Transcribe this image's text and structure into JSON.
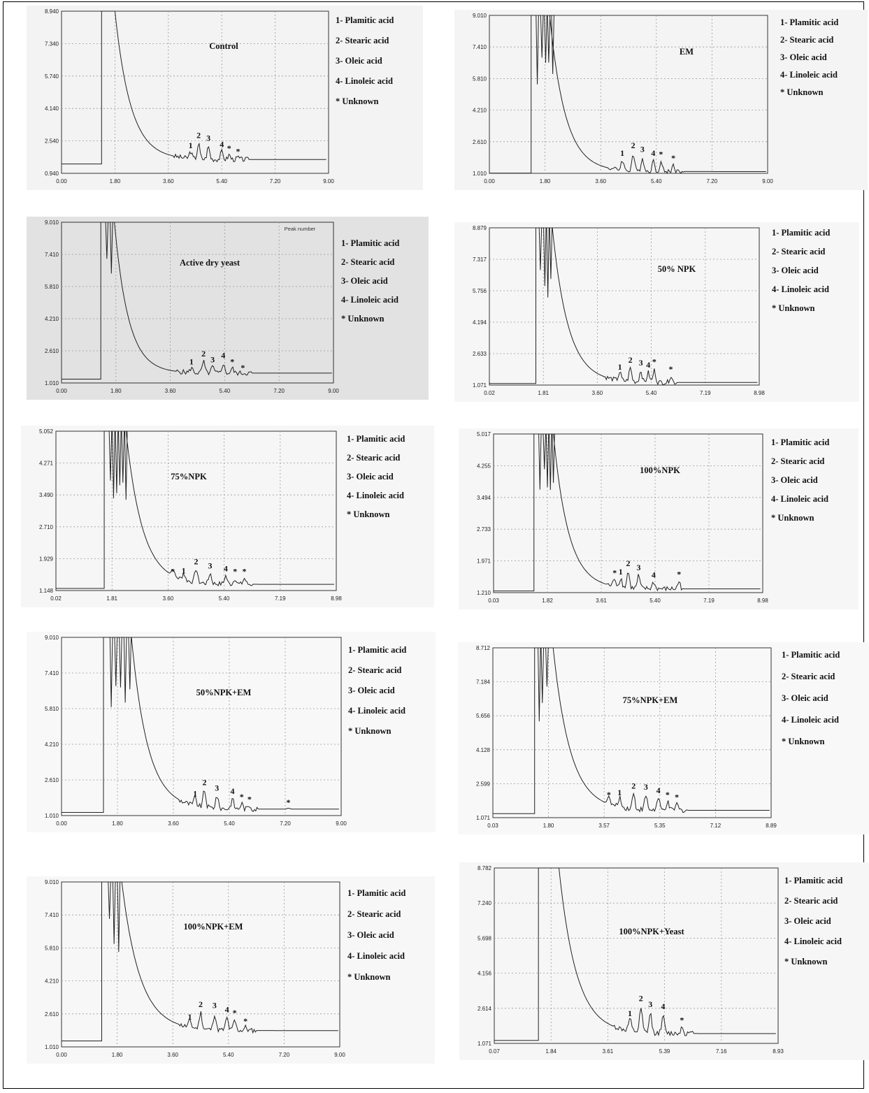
{
  "chart_data": [
    {
      "type": "line",
      "title": "Control",
      "x_ticks": [
        "0.00",
        "1.80",
        "3.60",
        "5.40",
        "7.20",
        "9.00"
      ],
      "y_ticks": [
        "0.940",
        "2.540",
        "4.140",
        "5.740",
        "7.340",
        "8.940"
      ],
      "xlim": [
        0,
        9
      ],
      "ylim": [
        0.94,
        8.94
      ],
      "grid": true,
      "trace": {
        "baseline": 1.4,
        "inj_start": 1.35,
        "inj_end": 1.8,
        "tail_end": 1.62,
        "decay_k": 1.05,
        "spikes": []
      },
      "peaks": [
        {
          "label": "1",
          "x": 4.35,
          "y": 2.05
        },
        {
          "label": "2",
          "x": 4.62,
          "y": 2.55
        },
        {
          "label": "3",
          "x": 4.95,
          "y": 2.4
        },
        {
          "label": "4",
          "x": 5.4,
          "y": 2.1
        },
        {
          "label": "*",
          "x": 5.65,
          "y": 1.9
        },
        {
          "label": "*",
          "x": 5.95,
          "y": 1.75
        }
      ],
      "legend": [
        "1- Plamitic acid",
        "2- Stearic acid",
        "3- Oleic acid",
        "4- Linoleic acid",
        "* Unknown"
      ]
    },
    {
      "type": "line",
      "title": "EM",
      "x_ticks": [
        "0.00",
        "1.80",
        "3.60",
        "5.40",
        "7.20",
        "9.00"
      ],
      "y_ticks": [
        "1.010",
        "2.610",
        "4.210",
        "5.810",
        "7.410",
        "9.010"
      ],
      "xlim": [
        0,
        9
      ],
      "ylim": [
        1.01,
        9.01
      ],
      "grid": true,
      "trace": {
        "baseline": 1.02,
        "inj_start": 1.35,
        "inj_end": 1.95,
        "tail_end": 1.1,
        "decay_k": 1.1,
        "spikes": [
          1.55,
          1.7,
          1.82,
          1.92,
          2.05
        ]
      },
      "peaks": [
        {
          "label": "1",
          "x": 4.3,
          "y": 1.75
        },
        {
          "label": "2",
          "x": 4.65,
          "y": 2.15
        },
        {
          "label": "3",
          "x": 4.95,
          "y": 1.95
        },
        {
          "label": "4",
          "x": 5.3,
          "y": 1.75
        },
        {
          "label": "*",
          "x": 5.55,
          "y": 1.7
        },
        {
          "label": "*",
          "x": 5.95,
          "y": 1.5
        }
      ],
      "legend": [
        "1- Plamitic acid",
        "2- Stearic acid",
        "3- Oleic acid",
        "4- Linoleic acid",
        "* Unknown"
      ]
    },
    {
      "type": "line",
      "title": "Active dry yeast",
      "x_ticks": [
        "0.00",
        "1.80",
        "3.60",
        "5.40",
        "7.20",
        "9.00"
      ],
      "y_ticks": [
        "1.010",
        "2.610",
        "4.210",
        "5.810",
        "7.410",
        "9.010"
      ],
      "xlim": [
        0,
        9
      ],
      "ylim": [
        1.01,
        9.01
      ],
      "grid": true,
      "header_label": "Peak number",
      "trace": {
        "baseline": 1.2,
        "inj_start": 1.3,
        "inj_end": 1.75,
        "tail_end": 1.5,
        "decay_k": 1.2,
        "spikes": [
          1.5,
          1.65
        ]
      },
      "peaks": [
        {
          "label": "1",
          "x": 4.3,
          "y": 1.8
        },
        {
          "label": "2",
          "x": 4.7,
          "y": 2.2
        },
        {
          "label": "3",
          "x": 5.0,
          "y": 1.9
        },
        {
          "label": "4",
          "x": 5.35,
          "y": 2.1
        },
        {
          "label": "*",
          "x": 5.65,
          "y": 1.8
        },
        {
          "label": "*",
          "x": 6.0,
          "y": 1.5
        }
      ],
      "legend": [
        "1- Plamitic acid",
        "2- Stearic acid",
        "3- Oleic acid",
        "4- Linoleic acid",
        "* Unknown"
      ]
    },
    {
      "type": "line",
      "title": "50% NPK",
      "x_ticks": [
        "0.02",
        "1.81",
        "3.60",
        "5.40",
        "7.19",
        "8.98"
      ],
      "y_ticks": [
        "1.071",
        "2.633",
        "4.194",
        "5.756",
        "7.317",
        "8.879"
      ],
      "xlim": [
        0,
        9
      ],
      "ylim": [
        1.071,
        8.879
      ],
      "grid": true,
      "trace": {
        "baseline": 1.15,
        "inj_start": 1.55,
        "inj_end": 2.1,
        "tail_end": 1.2,
        "decay_k": 1.05,
        "spikes": [
          1.7,
          1.85,
          1.95,
          2.05
        ]
      },
      "peaks": [
        {
          "label": "1",
          "x": 4.35,
          "y": 1.7
        },
        {
          "label": "2",
          "x": 4.7,
          "y": 2.05
        },
        {
          "label": "3",
          "x": 5.05,
          "y": 1.9
        },
        {
          "label": "4",
          "x": 5.3,
          "y": 1.8
        },
        {
          "label": "*",
          "x": 5.5,
          "y": 1.95
        },
        {
          "label": "*",
          "x": 6.05,
          "y": 1.6
        }
      ],
      "legend": [
        "1- Plamitic acid",
        "2- Stearic acid",
        "3- Oleic acid",
        "4- Linoleic acid",
        "* Unknown"
      ]
    },
    {
      "type": "line",
      "title": "75%NPK",
      "x_ticks": [
        "0.02",
        "1.81",
        "3.60",
        "5.40",
        "7.19",
        "8.98"
      ],
      "y_ticks": [
        "1.148",
        "1.929",
        "2.710",
        "3.490",
        "4.271",
        "5.052"
      ],
      "xlim": [
        0,
        9
      ],
      "ylim": [
        1.148,
        5.052
      ],
      "grid": true,
      "trace": {
        "baseline": 1.2,
        "inj_start": 1.55,
        "inj_end": 2.25,
        "tail_end": 1.3,
        "decay_k": 1.05,
        "spikes": [
          1.75,
          1.85,
          1.95,
          2.05,
          2.15,
          2.25
        ]
      },
      "peaks": [
        {
          "label": "*",
          "x": 3.75,
          "y": 1.48
        },
        {
          "label": "1",
          "x": 4.1,
          "y": 1.5
        },
        {
          "label": "2",
          "x": 4.5,
          "y": 1.72
        },
        {
          "label": "3",
          "x": 4.95,
          "y": 1.62
        },
        {
          "label": "4",
          "x": 5.45,
          "y": 1.55
        },
        {
          "label": "*",
          "x": 5.75,
          "y": 1.48
        },
        {
          "label": "*",
          "x": 6.05,
          "y": 1.48
        }
      ],
      "legend": [
        "1- Plamitic acid",
        "2- Stearic acid",
        "3- Oleic acid",
        "4- Linoleic acid",
        "* Unknown"
      ]
    },
    {
      "type": "line",
      "title": "100%NPK",
      "x_ticks": [
        "0.03",
        "1.82",
        "3.61",
        "5.40",
        "7.19",
        "8.98"
      ],
      "y_ticks": [
        "1.210",
        "1.971",
        "2.733",
        "3.494",
        "4.255",
        "5.017"
      ],
      "xlim": [
        0,
        9
      ],
      "ylim": [
        1.21,
        5.017
      ],
      "grid": true,
      "trace": {
        "baseline": 1.25,
        "inj_start": 1.35,
        "inj_end": 2.0,
        "tail_end": 1.3,
        "decay_k": 1.1,
        "spikes": [
          1.55,
          1.7,
          1.8,
          1.9,
          2.0
        ]
      },
      "peaks": [
        {
          "label": "*",
          "x": 4.05,
          "y": 1.55
        },
        {
          "label": "1",
          "x": 4.25,
          "y": 1.58
        },
        {
          "label": "2",
          "x": 4.5,
          "y": 1.78
        },
        {
          "label": "3",
          "x": 4.85,
          "y": 1.68
        },
        {
          "label": "4",
          "x": 5.35,
          "y": 1.5
        },
        {
          "label": "*",
          "x": 6.2,
          "y": 1.52
        }
      ],
      "legend": [
        "1- Plamitic acid",
        "2- Stearic acid",
        "3- Oleic acid",
        "4- Linoleic acid",
        "* Unknown"
      ]
    },
    {
      "type": "line",
      "title": "50%NPK+EM",
      "x_ticks": [
        "0.00",
        "1.80",
        "3.60",
        "5.40",
        "7.20",
        "9.00"
      ],
      "y_ticks": [
        "1.010",
        "2.610",
        "4.210",
        "5.810",
        "7.410",
        "9.010"
      ],
      "xlim": [
        0,
        9
      ],
      "ylim": [
        1.01,
        9.01
      ],
      "grid": true,
      "trace": {
        "baseline": 1.15,
        "inj_start": 1.35,
        "inj_end": 2.25,
        "tail_end": 1.3,
        "decay_k": 1.05,
        "spikes": [
          1.6,
          1.75,
          1.9,
          2.05,
          2.2
        ]
      },
      "peaks": [
        {
          "label": "1",
          "x": 4.3,
          "y": 1.75
        },
        {
          "label": "2",
          "x": 4.6,
          "y": 2.25
        },
        {
          "label": "3",
          "x": 5.0,
          "y": 2.0
        },
        {
          "label": "4",
          "x": 5.5,
          "y": 1.85
        },
        {
          "label": "*",
          "x": 5.8,
          "y": 1.6
        },
        {
          "label": "*",
          "x": 6.05,
          "y": 1.5
        },
        {
          "label": "*",
          "x": 7.3,
          "y": 1.35
        }
      ],
      "legend": [
        "1- Plamitic acid",
        "2- Stearic acid",
        "3- Oleic acid",
        "4- Linoleic acid",
        "* Unknown"
      ]
    },
    {
      "type": "line",
      "title": "75%NPK+EM",
      "x_ticks": [
        "0.03",
        "1.80",
        "3.57",
        "5.35",
        "7.12",
        "8.89"
      ],
      "y_ticks": [
        "1.071",
        "2.599",
        "4.128",
        "5.656",
        "7.184",
        "8.712"
      ],
      "xlim": [
        0,
        9
      ],
      "ylim": [
        1.071,
        8.712
      ],
      "grid": true,
      "trace": {
        "baseline": 1.25,
        "inj_start": 1.35,
        "inj_end": 1.95,
        "tail_end": 1.4,
        "decay_k": 1.0,
        "spikes": [
          1.5,
          1.6,
          1.75
        ]
      },
      "peaks": [
        {
          "label": "*",
          "x": 3.75,
          "y": 1.85
        },
        {
          "label": "1",
          "x": 4.1,
          "y": 1.95
        },
        {
          "label": "2",
          "x": 4.55,
          "y": 2.25
        },
        {
          "label": "3",
          "x": 4.95,
          "y": 2.2
        },
        {
          "label": "4",
          "x": 5.35,
          "y": 2.05
        },
        {
          "label": "*",
          "x": 5.65,
          "y": 1.85
        },
        {
          "label": "*",
          "x": 5.95,
          "y": 1.75
        }
      ],
      "legend": [
        "1- Plamitic acid",
        "2- Stearic acid",
        "3- Oleic acid",
        "4- Linoleic acid",
        "* Unknown"
      ]
    },
    {
      "type": "line",
      "title": "100%NPK+EM",
      "x_ticks": [
        "0.00",
        "1.80",
        "3.60",
        "5.40",
        "7.20",
        "9.00"
      ],
      "y_ticks": [
        "1.010",
        "2.610",
        "4.210",
        "5.810",
        "7.410",
        "9.010"
      ],
      "xlim": [
        0,
        9
      ],
      "ylim": [
        1.01,
        9.01
      ],
      "grid": true,
      "trace": {
        "baseline": 1.3,
        "inj_start": 1.3,
        "inj_end": 1.95,
        "tail_end": 1.8,
        "decay_k": 0.95,
        "spikes": [
          1.55,
          1.7,
          1.85
        ]
      },
      "peaks": [
        {
          "label": "1",
          "x": 4.15,
          "y": 2.2
        },
        {
          "label": "2",
          "x": 4.5,
          "y": 2.8
        },
        {
          "label": "3",
          "x": 4.95,
          "y": 2.75
        },
        {
          "label": "4",
          "x": 5.35,
          "y": 2.55
        },
        {
          "label": "*",
          "x": 5.6,
          "y": 2.4
        },
        {
          "label": "*",
          "x": 5.95,
          "y": 2.0
        }
      ],
      "legend": [
        "1- Plamitic acid",
        "2- Stearic acid",
        "3- Oleic acid",
        "4- Linoleic acid",
        "* Unknown"
      ]
    },
    {
      "type": "line",
      "title": "100%NPK+Yeast",
      "x_ticks": [
        "0.07",
        "1.84",
        "3.61",
        "5.39",
        "7.16",
        "8.93"
      ],
      "y_ticks": [
        "1.071",
        "2.614",
        "4.156",
        "5.698",
        "7.240",
        "8.782"
      ],
      "xlim": [
        0,
        9
      ],
      "ylim": [
        1.071,
        8.782
      ],
      "grid": true,
      "trace": {
        "baseline": 1.2,
        "inj_start": 1.4,
        "inj_end": 2.05,
        "tail_end": 1.5,
        "decay_k": 1.0,
        "spikes": []
      },
      "peaks": [
        {
          "label": "1",
          "x": 4.3,
          "y": 2.15
        },
        {
          "label": "2",
          "x": 4.65,
          "y": 2.8
        },
        {
          "label": "3",
          "x": 4.95,
          "y": 2.55
        },
        {
          "label": "4",
          "x": 5.35,
          "y": 2.45
        },
        {
          "label": "*",
          "x": 5.95,
          "y": 1.85
        }
      ],
      "legend": [
        "1- Plamitic acid",
        "2- Stearic acid",
        "3- Oleic acid",
        "4- Linoleic acid",
        "* Unknown"
      ]
    }
  ]
}
